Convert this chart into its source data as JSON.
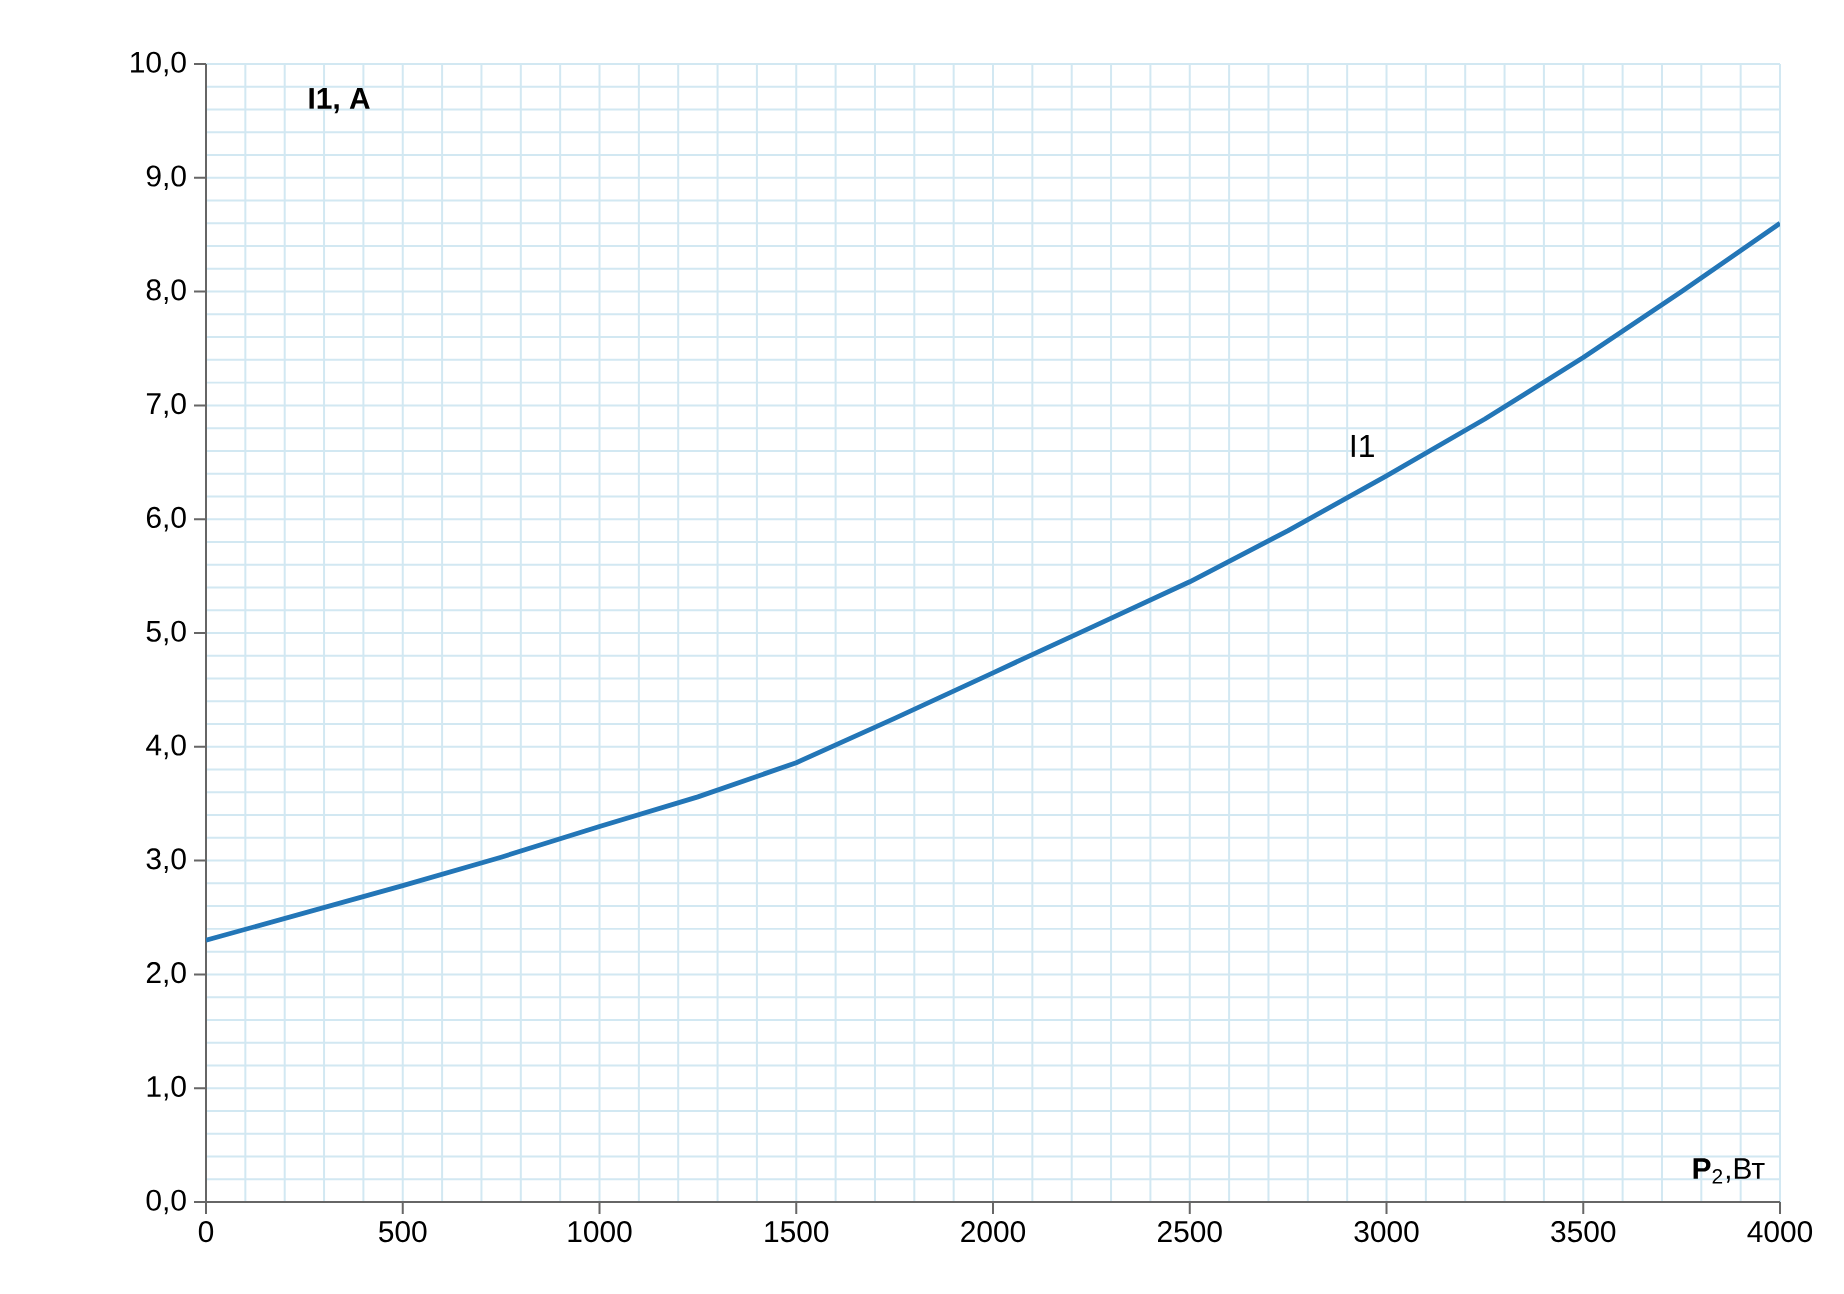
{
  "chart_data": {
    "type": "line",
    "xlabel": "**P**$_{2}$,Вт",
    "ylabel": "I1, A",
    "x": [
      0,
      250,
      500,
      750,
      1000,
      1250,
      1500,
      1750,
      2000,
      2250,
      2500,
      2750,
      3000,
      3250,
      3500,
      3750,
      4000
    ],
    "series": [
      {
        "name": "I1",
        "color": "#2376b7",
        "values": [
          2.3,
          2.54,
          2.78,
          3.03,
          3.3,
          3.56,
          3.86,
          4.25,
          4.65,
          5.05,
          5.45,
          5.9,
          6.38,
          6.88,
          7.42,
          8.0,
          8.6
        ]
      }
    ],
    "xlim": [
      0,
      4000
    ],
    "ylim": [
      0,
      10
    ],
    "xticks": [
      0,
      500,
      1000,
      1500,
      2000,
      2500,
      3000,
      3500,
      4000
    ],
    "yticks": [
      {
        "value": 0,
        "label": "0,0"
      },
      {
        "value": 1,
        "label": "1,0"
      },
      {
        "value": 2,
        "label": "2,0"
      },
      {
        "value": 3,
        "label": "3,0"
      },
      {
        "value": 4,
        "label": "4,0"
      },
      {
        "value": 5,
        "label": "5,0"
      },
      {
        "value": 6,
        "label": "6,0"
      },
      {
        "value": 7,
        "label": "7,0"
      },
      {
        "value": 8,
        "label": "8,0"
      },
      {
        "value": 9,
        "label": "9,0"
      },
      {
        "value": 10,
        "label": "10,0"
      }
    ],
    "grid": true,
    "marker": "none",
    "line_style": "solid"
  }
}
